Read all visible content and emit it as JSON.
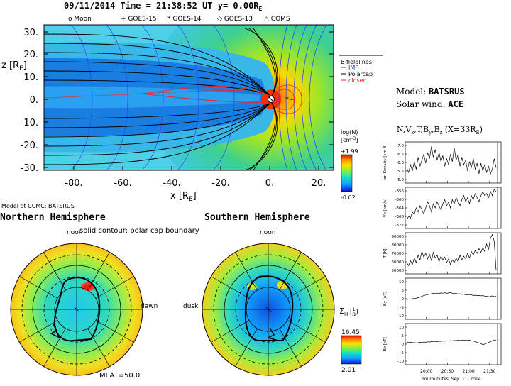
{
  "header": {
    "title_prefix": "09/11/2014 Time = 21:38:52 UT y= 0.00R",
    "title_sub": "E",
    "legend": [
      {
        "symbol": "o",
        "label": "Moon"
      },
      {
        "symbol": "+",
        "label": "GOES-15"
      },
      {
        "symbol": "*",
        "label": "GOES-14"
      },
      {
        "symbol": "◇",
        "label": "GOES-13"
      },
      {
        "symbol": "△",
        "label": "COMS"
      }
    ]
  },
  "meridional": {
    "zlabel_main": "z [R",
    "zlabel_sub": "E",
    "zlabel_end": "]",
    "xlabel_main": "x [R",
    "xlabel_sub": "E",
    "xlabel_end": "]",
    "yticks": [
      "30.",
      "20.",
      "10.",
      "0.",
      "-10.",
      "-20.",
      "-30."
    ],
    "xticks": [
      "-80.",
      "-60.",
      "-40.",
      "-20.",
      "0.",
      "20."
    ]
  },
  "fieldline_legend": {
    "title": "B fieldlines",
    "items": [
      {
        "label": "IMF",
        "color": "#3030ff"
      },
      {
        "label": "Polarcap",
        "color": "#000000"
      },
      {
        "label": "closed",
        "color": "#ff2020"
      }
    ]
  },
  "density_bar": {
    "label": "log(N)",
    "unit": "[cm",
    "unit_sup": "-3",
    "unit_end": "]",
    "max": "+1.99",
    "min": "-0.62"
  },
  "model_info": {
    "model_label": "Model: ",
    "model_value": "BATSRUS",
    "wind_label": "Solar wind: ",
    "wind_value": "ACE",
    "params": "N,V",
    "params_full": "N,Vx,T,By,Bz (X=33RE)"
  },
  "hemispheres": {
    "caption": "Model at CCMC: BATSRUS",
    "north_title": "Northern Hemisphere",
    "south_title": "Southern Hemisphere",
    "subtitle": "solid contour: polar cap boundary",
    "noon": "noon",
    "dawn": "dawn",
    "dusk": "dusk",
    "mlat": "MLAT=50.0"
  },
  "sigma_bar": {
    "label": "Σ",
    "label_sub": "H",
    "unit": "[",
    "unit_frac_top": "1",
    "unit_frac_bottom": "Ω",
    "unit_end": "]",
    "max": "16.45",
    "min": "2.01"
  },
  "timeseries": {
    "footer": "hourminutes, Sep. 11, 2014",
    "xticks": [
      "20:00",
      "20:30",
      "21:00",
      "21:30"
    ],
    "panels": [
      {
        "ylabel": "Ion Density [cm-3]",
        "ticks": [
          "7.0",
          "6.5",
          "6.0",
          "5.5",
          "5.0"
        ]
      },
      {
        "ylabel": "Vx [km/s]",
        "ticks": [
          "-356",
          "-360",
          "-364",
          "-368",
          "-372"
        ]
      },
      {
        "ylabel": "T [K]",
        "ticks": [
          "90000",
          "80000",
          "70000",
          "60000",
          "50000"
        ]
      },
      {
        "ylabel": "By [nT]",
        "ticks": [
          "10",
          "5",
          "0",
          "-5",
          "-10"
        ]
      },
      {
        "ylabel": "Bz [nT]",
        "ticks": [
          "10",
          "5",
          "0",
          "-5",
          "-10"
        ]
      }
    ]
  },
  "chart_data": [
    {
      "type": "line",
      "title": "Ion Density",
      "ylabel": "Ion Density [cm-3]",
      "ylim": [
        4.6,
        7.3
      ],
      "x_range": [
        "19:40",
        "21:40"
      ],
      "values": [
        5.6,
        5.3,
        5.8,
        5.4,
        6.0,
        5.5,
        6.3,
        5.7,
        6.1,
        6.5,
        5.9,
        6.6,
        6.2,
        7.0,
        6.3,
        6.8,
        6.1,
        6.6,
        6.0,
        6.4,
        5.7,
        6.2,
        5.8,
        6.5,
        6.0,
        6.9,
        6.1,
        6.5,
        5.7,
        6.3,
        5.8,
        6.1,
        5.4,
        6.0,
        5.6,
        6.2,
        5.5,
        5.9,
        5.2,
        5.9,
        5.4,
        5.8,
        5.3,
        5.7,
        5.2,
        5.5,
        6.2,
        5.6
      ]
    },
    {
      "type": "line",
      "title": "Vx",
      "ylabel": "Vx [km/s]",
      "ylim": [
        -374,
        -354
      ],
      "x_range": [
        "19:40",
        "21:40"
      ],
      "values": [
        -370,
        -368,
        -369,
        -366,
        -367,
        -364,
        -366,
        -363,
        -365,
        -367,
        -364,
        -361,
        -363,
        -366,
        -362,
        -364,
        -361,
        -363,
        -365,
        -362,
        -360,
        -363,
        -361,
        -364,
        -360,
        -362,
        -359,
        -361,
        -363,
        -360,
        -358,
        -361,
        -359,
        -362,
        -358,
        -360,
        -357,
        -359,
        -361,
        -358,
        -356,
        -358,
        -357,
        -359,
        -356,
        -358,
        -355,
        -356
      ]
    },
    {
      "type": "line",
      "title": "T",
      "ylabel": "T [K]",
      "ylim": [
        48000,
        92000
      ],
      "x_range": [
        "19:40",
        "21:40"
      ],
      "values": [
        60000,
        57000,
        62000,
        58000,
        65000,
        60000,
        68000,
        63000,
        72000,
        66000,
        70000,
        64000,
        69000,
        62000,
        71000,
        65000,
        68000,
        61000,
        67000,
        63000,
        66000,
        60000,
        64000,
        58000,
        63000,
        60000,
        65000,
        61000,
        68000,
        63000,
        67000,
        64000,
        70000,
        65000,
        72000,
        68000,
        73000,
        70000,
        75000,
        71000,
        76000,
        72000,
        80000,
        74000,
        86000,
        90000,
        83000,
        52000
      ]
    },
    {
      "type": "line",
      "title": "By",
      "ylabel": "By [nT]",
      "ylim": [
        -10,
        10
      ],
      "x_range": [
        "19:40",
        "21:40"
      ],
      "values": [
        -0.5,
        -0.2,
        -0.3,
        0.1,
        0.0,
        0.3,
        0.5,
        0.8,
        1.2,
        1.5,
        1.8,
        2.0,
        2.2,
        2.4,
        2.6,
        2.5,
        2.7,
        2.6,
        2.8,
        2.7,
        2.9,
        2.6,
        2.8,
        3.0,
        2.7,
        2.5,
        2.6,
        2.3,
        2.4,
        2.1,
        2.2,
        1.9,
        2.0,
        1.8,
        1.9,
        1.6,
        1.7,
        1.5,
        1.6,
        1.4,
        1.5,
        1.3,
        1.2,
        1.0,
        1.1,
        1.4,
        1.0,
        1.2
      ]
    },
    {
      "type": "line",
      "title": "Bz",
      "ylabel": "Bz [nT]",
      "ylim": [
        -10,
        10
      ],
      "x_range": [
        "19:40",
        "21:40"
      ],
      "values": [
        1.0,
        0.8,
        0.9,
        0.7,
        0.8,
        0.6,
        0.7,
        0.9,
        0.8,
        1.0,
        0.9,
        1.1,
        1.0,
        1.2,
        1.1,
        1.3,
        1.2,
        1.4,
        1.3,
        1.5,
        1.4,
        1.6,
        1.5,
        1.7,
        1.6,
        1.8,
        1.7,
        1.9,
        1.8,
        2.0,
        1.9,
        2.0,
        1.8,
        1.9,
        1.6,
        1.5,
        1.2,
        0.9,
        0.6,
        0.2,
        -0.2,
        0.0,
        0.4,
        0.8,
        1.2,
        1.6,
        2.0,
        1.9
      ]
    }
  ]
}
